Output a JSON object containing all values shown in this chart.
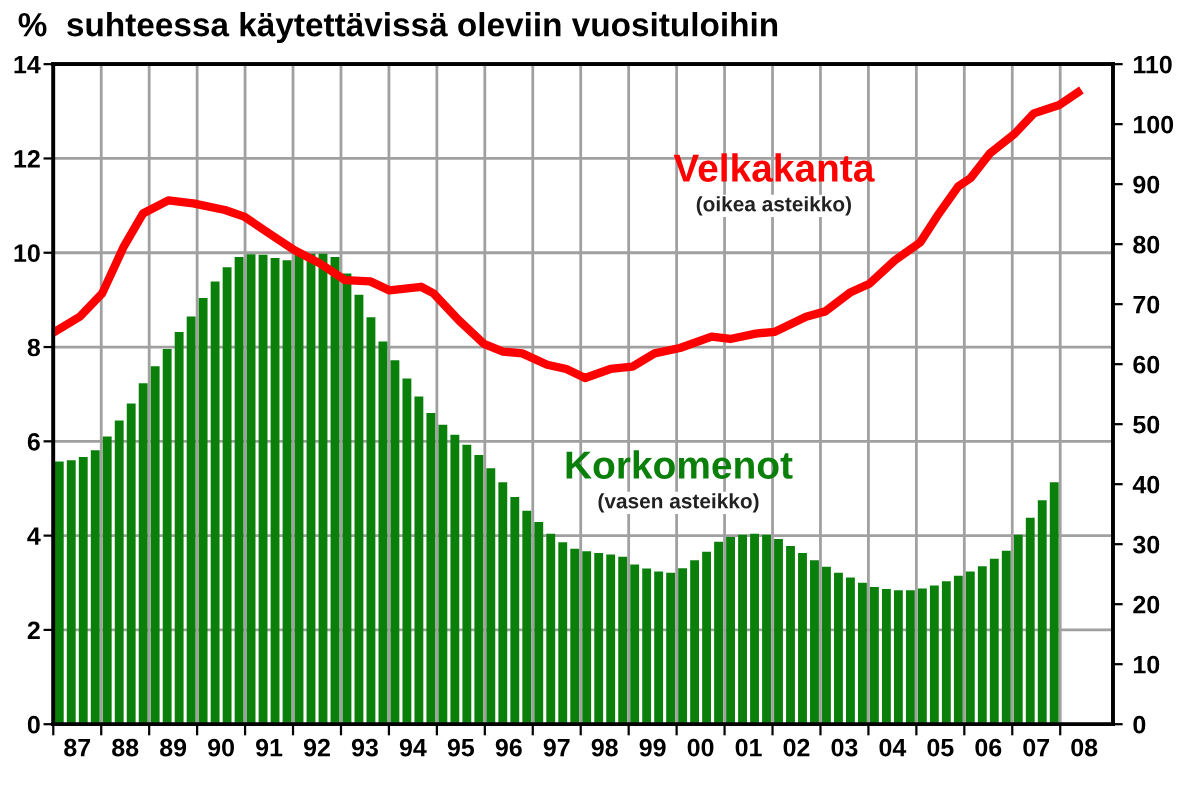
{
  "chart_data": {
    "type": "bar",
    "title": "%  suhteessa käytettävissä oleviin vuosituloihin",
    "xlim": [
      1986.5,
      2008.6
    ],
    "xticks": [
      {
        "value": 1986.5,
        "label": null
      },
      {
        "value": 1987.5,
        "label": null
      },
      {
        "value": 1988.5,
        "label": null
      },
      {
        "value": 1989.5,
        "label": null
      },
      {
        "value": 1990.5,
        "label": null
      },
      {
        "value": 1991.5,
        "label": null
      },
      {
        "value": 1992.5,
        "label": null
      },
      {
        "value": 1993.5,
        "label": null
      },
      {
        "value": 1994.5,
        "label": null
      },
      {
        "value": 1995.5,
        "label": null
      },
      {
        "value": 1996.5,
        "label": null
      },
      {
        "value": 1997.5,
        "label": null
      },
      {
        "value": 1998.5,
        "label": null
      },
      {
        "value": 1999.5,
        "label": null
      },
      {
        "value": 2000.5,
        "label": null
      },
      {
        "value": 2001.5,
        "label": null
      },
      {
        "value": 2002.5,
        "label": null
      },
      {
        "value": 2003.5,
        "label": null
      },
      {
        "value": 2004.5,
        "label": null
      },
      {
        "value": 2005.5,
        "label": null
      },
      {
        "value": 2006.5,
        "label": null
      },
      {
        "value": 2007.5,
        "label": null
      },
      {
        "value": 1987,
        "label": "87"
      },
      {
        "value": 1988,
        "label": "88"
      },
      {
        "value": 1989,
        "label": "89"
      },
      {
        "value": 1990,
        "label": "90"
      },
      {
        "value": 1991,
        "label": "91"
      },
      {
        "value": 1992,
        "label": "92"
      },
      {
        "value": 1993,
        "label": "93"
      },
      {
        "value": 1994,
        "label": "94"
      },
      {
        "value": 1995,
        "label": "95"
      },
      {
        "value": 1996,
        "label": "96"
      },
      {
        "value": 1997,
        "label": "97"
      },
      {
        "value": 1998,
        "label": "98"
      },
      {
        "value": 1999,
        "label": "99"
      },
      {
        "value": 2000,
        "label": "00"
      },
      {
        "value": 2001,
        "label": "01"
      },
      {
        "value": 2002,
        "label": "02"
      },
      {
        "value": 2003,
        "label": "03"
      },
      {
        "value": 2004,
        "label": "04"
      },
      {
        "value": 2005,
        "label": "05"
      },
      {
        "value": 2006,
        "label": "06"
      },
      {
        "value": 2007,
        "label": "07"
      },
      {
        "value": 2008,
        "label": "08"
      }
    ],
    "ylim": [
      0,
      14
    ],
    "yticks": [
      0,
      2,
      4,
      6,
      8,
      10,
      12,
      14
    ],
    "y2lim": [
      0,
      110
    ],
    "y2ticks": [
      0,
      10,
      20,
      30,
      40,
      50,
      60,
      70,
      80,
      90,
      100,
      110
    ],
    "grid": true,
    "legend": false,
    "series": [
      {
        "name": "Korkomenot",
        "color": "#0a800a",
        "x": [
          1986.625,
          1986.875,
          1987.125,
          1987.375,
          1987.625,
          1987.875,
          1988.125,
          1988.375,
          1988.625,
          1988.875,
          1989.125,
          1989.375,
          1989.625,
          1989.875,
          1990.125,
          1990.375,
          1990.625,
          1990.875,
          1991.125,
          1991.375,
          1991.625,
          1991.875,
          1992.125,
          1992.375,
          1992.625,
          1992.875,
          1993.125,
          1993.375,
          1993.625,
          1993.875,
          1994.125,
          1994.375,
          1994.625,
          1994.875,
          1995.125,
          1995.375,
          1995.625,
          1995.875,
          1996.125,
          1996.375,
          1996.625,
          1996.875,
          1997.125,
          1997.375,
          1997.625,
          1997.875,
          1998.125,
          1998.375,
          1998.625,
          1998.875,
          1999.125,
          1999.375,
          1999.625,
          1999.875,
          2000.125,
          2000.375,
          2000.625,
          2000.875,
          2001.125,
          2001.375,
          2001.625,
          2001.875,
          2002.125,
          2002.375,
          2002.625,
          2002.875,
          2003.125,
          2003.375,
          2003.625,
          2003.875,
          2004.125,
          2004.375,
          2004.625,
          2004.875,
          2005.125,
          2005.375,
          2005.625,
          2005.875,
          2006.125,
          2006.375,
          2006.625,
          2006.875,
          2007.125,
          2007.375
        ],
        "values": [
          5.57,
          5.6,
          5.67,
          5.81,
          6.1,
          6.44,
          6.8,
          7.23,
          7.59,
          7.96,
          8.32,
          8.65,
          9.04,
          9.39,
          9.69,
          9.91,
          9.97,
          9.96,
          9.89,
          9.84,
          9.96,
          9.98,
          9.98,
          9.91,
          9.56,
          9.11,
          8.63,
          8.12,
          7.72,
          7.33,
          6.95,
          6.6,
          6.35,
          6.14,
          5.93,
          5.71,
          5.43,
          5.13,
          4.82,
          4.53,
          4.29,
          4.04,
          3.86,
          3.72,
          3.67,
          3.63,
          3.6,
          3.55,
          3.39,
          3.3,
          3.24,
          3.21,
          3.31,
          3.48,
          3.66,
          3.87,
          3.97,
          4.02,
          4.04,
          4.02,
          3.93,
          3.78,
          3.63,
          3.48,
          3.34,
          3.21,
          3.11,
          3.0,
          2.91,
          2.87,
          2.84,
          2.84,
          2.88,
          2.94,
          3.03,
          3.15,
          3.24,
          3.35,
          3.51,
          3.68,
          4.02,
          4.38,
          4.75,
          5.13
        ]
      },
      {
        "name": "Velkakanta",
        "type": "line",
        "axis": "y2",
        "color": "#ff0000",
        "line_style": "solid",
        "marker": "none",
        "x": [
          1986.53,
          1987.05,
          1987.52,
          1987.97,
          1988.37,
          1988.9,
          1989.42,
          1990.08,
          1990.48,
          1991.0,
          1991.53,
          1992.06,
          1992.59,
          1993.11,
          1993.51,
          1994.17,
          1994.43,
          1994.96,
          1995.48,
          1995.88,
          1996.28,
          1996.8,
          1997.2,
          1997.59,
          1998.12,
          1998.58,
          1999.04,
          1999.57,
          2000.23,
          2000.62,
          2001.15,
          2001.55,
          2002.2,
          2002.6,
          2003.13,
          2003.52,
          2004.05,
          2004.58,
          2004.97,
          2005.37,
          2005.63,
          2006.03,
          2006.55,
          2006.95,
          2007.48,
          2007.87
        ],
        "values": [
          65.4,
          67.9,
          71.8,
          79.6,
          85.1,
          87.3,
          86.8,
          85.7,
          84.6,
          81.8,
          79,
          76.8,
          74,
          73.8,
          72.3,
          72.9,
          71.8,
          67.3,
          63.4,
          62.1,
          61.8,
          59.9,
          59.2,
          57.7,
          59.2,
          59.6,
          61.8,
          62.7,
          64.6,
          64.2,
          65.1,
          65.4,
          67.9,
          68.8,
          72,
          73.4,
          77.3,
          80.3,
          85.1,
          89.6,
          91,
          95.1,
          98.4,
          101.8,
          103.2,
          105.3
        ]
      }
    ],
    "annotations": [
      "(vasen asteikko)",
      "(oikea asteikko)"
    ]
  }
}
